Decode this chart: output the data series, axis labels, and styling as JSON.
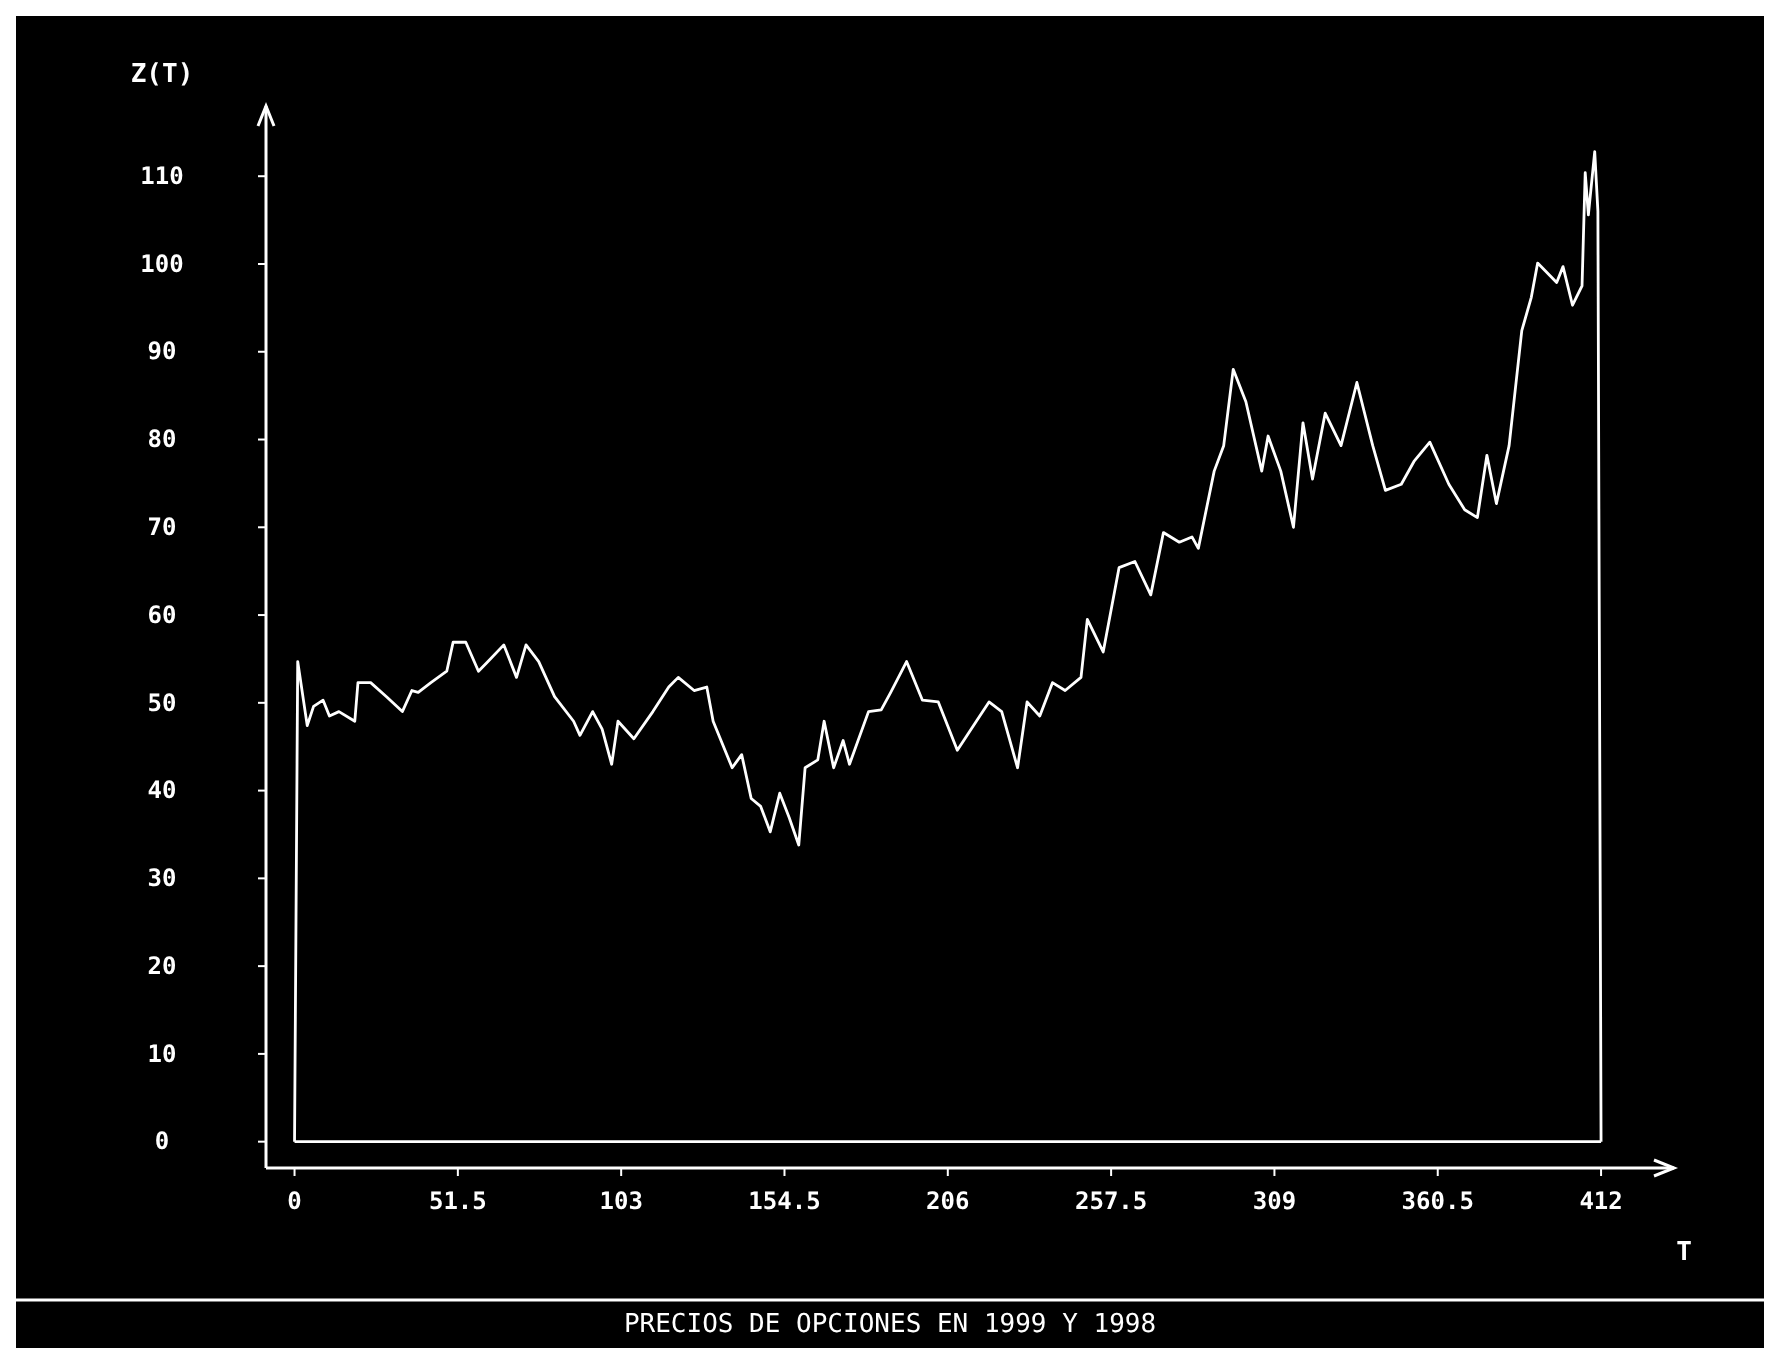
{
  "chart_data": {
    "type": "line",
    "title": "PRECIOS DE OPCIONES EN 1999 Y 1998",
    "xlabel": "T",
    "ylabel": "Z(T)",
    "xlim": [
      -9,
      435
    ],
    "ylim": [
      -3,
      118
    ],
    "xticks": [
      0,
      51.5,
      103,
      154.5,
      206,
      257.5,
      309,
      360.5,
      412
    ],
    "yticks": [
      0,
      10,
      20,
      30,
      40,
      50,
      60,
      70,
      80,
      90,
      100,
      110
    ],
    "grid": false,
    "marker": "none",
    "line_style": "solid",
    "series": [
      {
        "color": "#ffffff",
        "x": [
          0,
          1,
          4,
          6,
          9,
          11,
          14,
          19,
          20,
          24,
          29,
          34,
          37,
          39,
          43,
          48,
          50,
          54,
          58,
          61,
          66,
          70,
          73,
          77,
          82,
          88,
          90,
          94,
          97,
          100,
          102,
          107,
          113,
          118,
          121,
          126,
          130,
          132,
          138,
          141,
          144,
          147,
          150,
          153,
          156,
          159,
          161,
          165,
          167,
          170,
          173,
          175,
          181,
          185,
          188,
          193,
          198,
          203,
          209,
          215,
          219,
          223,
          228,
          231,
          235,
          239,
          243,
          248,
          250,
          255,
          260,
          265,
          270,
          274,
          279,
          283,
          285,
          290,
          293,
          296,
          300,
          305,
          307,
          311,
          315,
          318,
          321,
          325,
          330,
          335,
          340,
          344,
          349,
          353,
          358,
          364,
          369,
          373,
          376,
          379,
          383,
          387,
          390,
          392,
          398,
          400,
          403,
          406,
          407,
          408,
          410,
          411,
          412
        ],
        "values": [
          0,
          54.7,
          47.4,
          49.6,
          50.3,
          48.5,
          49.0,
          47.9,
          52.3,
          52.3,
          50.7,
          49.0,
          51.4,
          51.2,
          52.3,
          53.6,
          56.9,
          56.9,
          53.6,
          54.7,
          56.6,
          52.9,
          56.6,
          54.7,
          50.7,
          47.9,
          46.3,
          49.0,
          47.0,
          43.0,
          47.9,
          45.9,
          49.0,
          51.8,
          52.9,
          51.4,
          51.8,
          47.9,
          42.6,
          44.1,
          39.1,
          38.2,
          35.3,
          39.7,
          36.9,
          33.8,
          42.6,
          43.5,
          47.9,
          42.6,
          45.7,
          43.0,
          49.0,
          49.2,
          51.2,
          54.7,
          50.3,
          50.1,
          44.6,
          47.9,
          50.1,
          49.0,
          42.6,
          50.1,
          48.5,
          52.3,
          51.4,
          52.9,
          59.5,
          55.8,
          65.4,
          66.1,
          62.3,
          69.4,
          68.3,
          68.9,
          67.6,
          76.4,
          79.3,
          88.0,
          84.3,
          76.4,
          80.4,
          76.4,
          70.0,
          81.9,
          75.5,
          83.0,
          79.3,
          86.5,
          79.3,
          74.2,
          74.9,
          77.5,
          79.7,
          74.9,
          72.0,
          71.1,
          78.2,
          72.7,
          79.3,
          92.4,
          96.2,
          100.1,
          97.9,
          99.7,
          95.3,
          97.5,
          110.4,
          105.6,
          112.8,
          106.0,
          0
        ]
      },
      {
        "color": "#ffffff",
        "x": [
          0,
          412
        ],
        "values": [
          0,
          0
        ]
      }
    ]
  }
}
